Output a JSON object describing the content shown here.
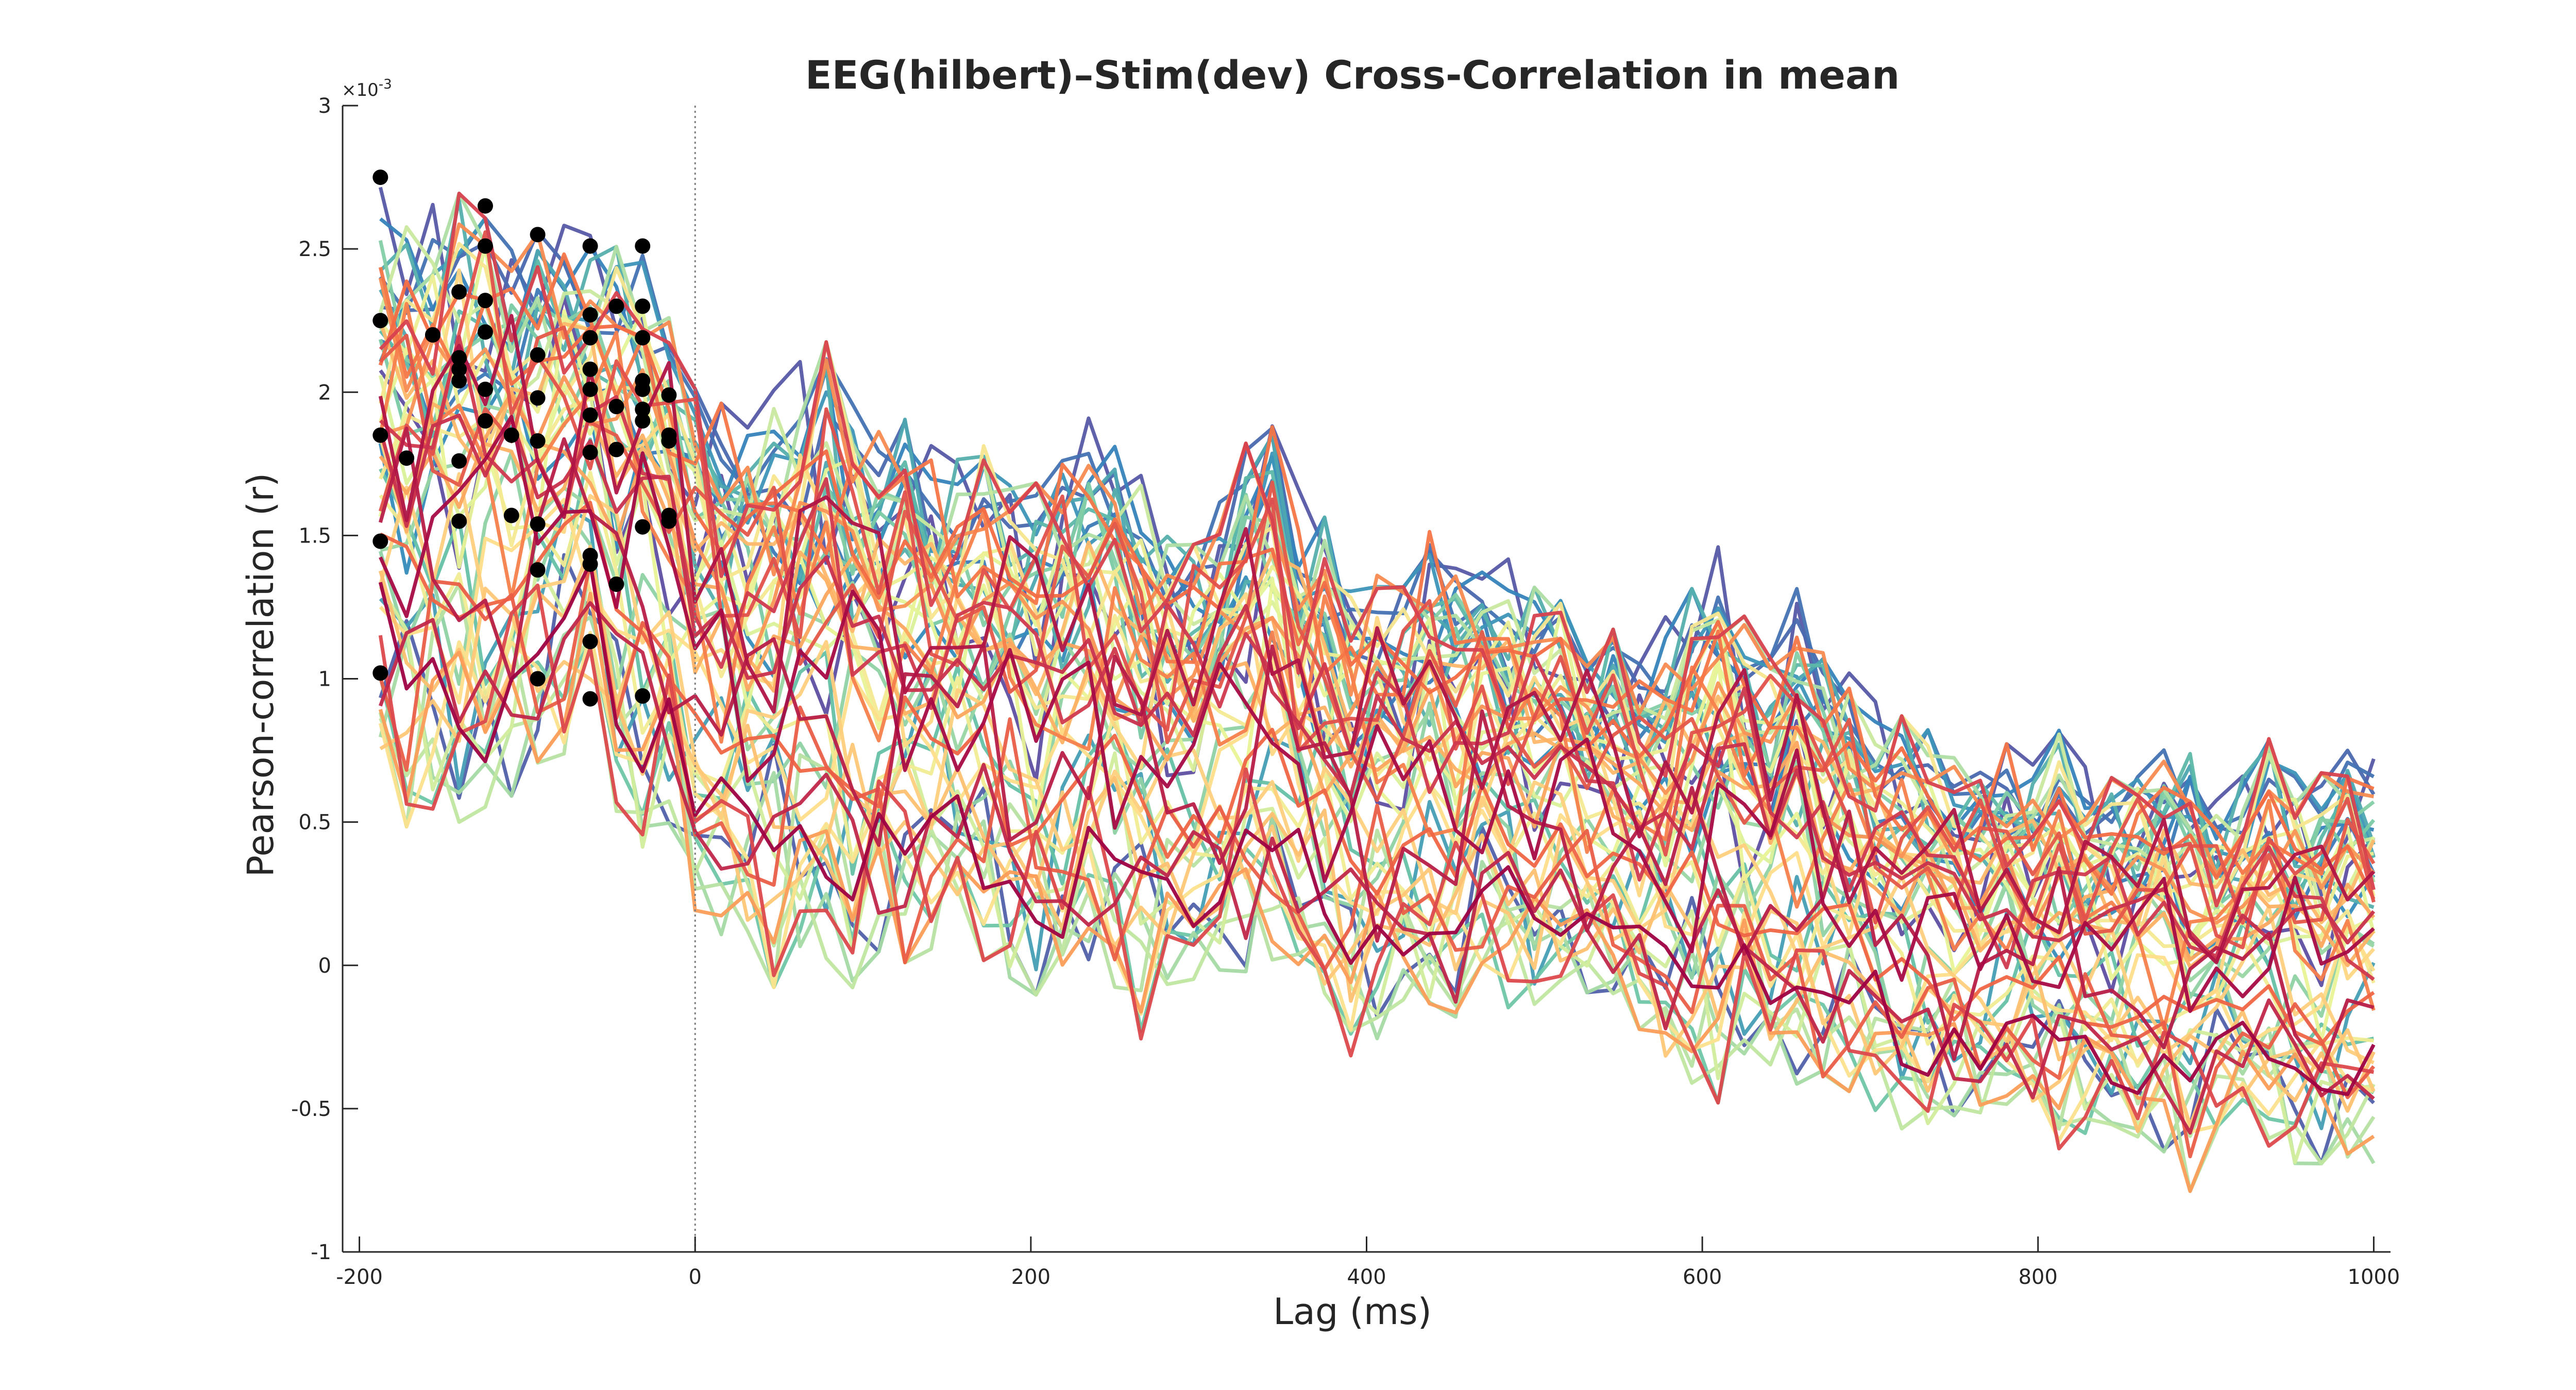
{
  "chart_data": {
    "type": "line",
    "title": "EEG(hilbert)–Stim(dev) Cross-Correlation in mean",
    "xlabel": "Lag (ms)",
    "ylabel": "Pearson-correlation (r)",
    "y_exponent_label": "×10",
    "y_exponent_power": "-3",
    "xlim": [
      -210,
      1010
    ],
    "ylim": [
      -1,
      3
    ],
    "y_scale_factor": 0.001,
    "x_ticks": [
      -200,
      0,
      200,
      400,
      600,
      800,
      1000
    ],
    "x_tick_labels": [
      "-200",
      "0",
      "200",
      "400",
      "600",
      "800",
      "1000"
    ],
    "y_ticks": [
      -1,
      -0.5,
      0,
      0.5,
      1,
      1.5,
      2,
      2.5,
      3
    ],
    "y_tick_labels": [
      "-1",
      "-0.5",
      "0",
      "0.5",
      "1",
      "1.5",
      "2",
      "2.5",
      "3"
    ],
    "reference_line_x": 0,
    "grid": false,
    "legend": "none",
    "x": [
      -187.5,
      -171.9,
      -156.3,
      -140.6,
      -125.0,
      -109.4,
      -93.8,
      -78.1,
      -62.5,
      -46.9,
      -31.3,
      -15.6,
      0.0,
      15.6,
      31.3,
      46.9,
      62.5,
      78.1,
      93.8,
      109.4,
      125.0,
      140.6,
      156.3,
      171.9,
      187.5,
      203.1,
      218.8,
      234.4,
      250.0,
      265.6,
      281.3,
      296.9,
      312.5,
      328.1,
      343.8,
      359.4,
      375.0,
      390.6,
      406.3,
      421.9,
      437.5,
      453.1,
      468.8,
      484.4,
      500.0,
      515.6,
      531.3,
      546.9,
      562.5,
      578.1,
      593.8,
      609.4,
      625.0,
      640.6,
      656.3,
      671.9,
      687.5,
      703.1,
      718.8,
      734.4,
      750.0,
      765.6,
      781.3,
      796.9,
      812.5,
      828.1,
      843.8,
      859.4,
      875.0,
      890.6,
      906.3,
      921.9,
      937.5,
      953.1,
      968.8,
      984.4,
      1000.0
    ],
    "envelope_min": [
      0.5,
      0.44,
      0.42,
      0.41,
      0.51,
      0.55,
      0.6,
      0.7,
      0.9,
      0.45,
      0.37,
      0.46,
      0.12,
      0.05,
      0.0,
      -0.12,
      -0.03,
      -0.02,
      -0.12,
      0.01,
      -0.03,
      0.0,
      0.06,
      -0.02,
      -0.08,
      -0.14,
      -0.16,
      -0.09,
      -0.14,
      -0.3,
      -0.14,
      -0.08,
      -0.05,
      -0.06,
      -0.02,
      -0.19,
      -0.23,
      -0.35,
      -0.29,
      -0.15,
      -0.3,
      -0.34,
      -0.02,
      -0.18,
      -0.22,
      -0.08,
      -0.12,
      -0.18,
      -0.25,
      -0.47,
      -0.45,
      -0.52,
      -0.34,
      -0.38,
      -0.45,
      -0.52,
      -0.47,
      -0.55,
      -0.6,
      -0.58,
      -0.55,
      -0.58,
      -0.57,
      -0.6,
      -0.67,
      -0.63,
      -0.58,
      -0.65,
      -0.68,
      -0.82,
      -0.6,
      -0.62,
      -0.66,
      -0.72,
      -0.72,
      -0.72,
      -0.72
    ],
    "envelope_max": [
      2.76,
      2.62,
      2.7,
      2.74,
      2.65,
      2.6,
      2.6,
      2.62,
      2.58,
      2.55,
      2.52,
      2.3,
      2.05,
      2.0,
      1.95,
      2.05,
      2.15,
      2.22,
      2.0,
      1.9,
      1.95,
      1.85,
      1.8,
      1.85,
      1.8,
      1.72,
      1.8,
      1.95,
      1.85,
      1.75,
      1.6,
      1.5,
      1.65,
      1.86,
      1.95,
      1.7,
      1.6,
      1.4,
      1.45,
      1.35,
      1.55,
      1.5,
      1.4,
      1.45,
      1.35,
      1.3,
      1.15,
      1.2,
      1.1,
      1.25,
      1.35,
      1.5,
      1.25,
      1.1,
      1.35,
      1.15,
      1.05,
      0.95,
      0.9,
      0.85,
      0.75,
      0.7,
      0.8,
      0.75,
      0.85,
      0.72,
      0.68,
      0.7,
      0.8,
      0.78,
      0.6,
      0.72,
      0.82,
      0.74,
      0.7,
      0.78,
      0.75
    ],
    "peak_markers": [
      {
        "x": -187.5,
        "y": 2.75
      },
      {
        "x": -187.5,
        "y": 2.25
      },
      {
        "x": -187.5,
        "y": 1.85
      },
      {
        "x": -187.5,
        "y": 1.48
      },
      {
        "x": -187.5,
        "y": 1.02
      },
      {
        "x": -171.9,
        "y": 1.77
      },
      {
        "x": -156.3,
        "y": 2.2
      },
      {
        "x": -140.6,
        "y": 2.35
      },
      {
        "x": -140.6,
        "y": 2.12
      },
      {
        "x": -140.6,
        "y": 2.08
      },
      {
        "x": -140.6,
        "y": 2.04
      },
      {
        "x": -140.6,
        "y": 1.76
      },
      {
        "x": -140.6,
        "y": 1.55
      },
      {
        "x": -125.0,
        "y": 2.65
      },
      {
        "x": -125.0,
        "y": 2.51
      },
      {
        "x": -125.0,
        "y": 2.32
      },
      {
        "x": -125.0,
        "y": 2.21
      },
      {
        "x": -125.0,
        "y": 2.01
      },
      {
        "x": -125.0,
        "y": 1.9
      },
      {
        "x": -109.4,
        "y": 1.85
      },
      {
        "x": -109.4,
        "y": 1.57
      },
      {
        "x": -93.8,
        "y": 2.55
      },
      {
        "x": -93.8,
        "y": 2.13
      },
      {
        "x": -93.8,
        "y": 1.98
      },
      {
        "x": -93.8,
        "y": 1.83
      },
      {
        "x": -93.8,
        "y": 1.54
      },
      {
        "x": -93.8,
        "y": 1.38
      },
      {
        "x": -93.8,
        "y": 1.0
      },
      {
        "x": -62.5,
        "y": 2.51
      },
      {
        "x": -62.5,
        "y": 2.27
      },
      {
        "x": -62.5,
        "y": 2.19
      },
      {
        "x": -62.5,
        "y": 2.08
      },
      {
        "x": -62.5,
        "y": 2.01
      },
      {
        "x": -62.5,
        "y": 1.92
      },
      {
        "x": -62.5,
        "y": 1.79
      },
      {
        "x": -62.5,
        "y": 1.43
      },
      {
        "x": -62.5,
        "y": 1.4
      },
      {
        "x": -62.5,
        "y": 1.13
      },
      {
        "x": -62.5,
        "y": 0.93
      },
      {
        "x": -46.9,
        "y": 2.3
      },
      {
        "x": -46.9,
        "y": 1.95
      },
      {
        "x": -46.9,
        "y": 1.8
      },
      {
        "x": -46.9,
        "y": 1.33
      },
      {
        "x": -31.3,
        "y": 2.51
      },
      {
        "x": -31.3,
        "y": 2.3
      },
      {
        "x": -31.3,
        "y": 2.19
      },
      {
        "x": -31.3,
        "y": 2.04
      },
      {
        "x": -31.3,
        "y": 2.01
      },
      {
        "x": -31.3,
        "y": 1.94
      },
      {
        "x": -31.3,
        "y": 1.9
      },
      {
        "x": -31.3,
        "y": 1.53
      },
      {
        "x": -31.3,
        "y": 0.94
      },
      {
        "x": -15.6,
        "y": 1.99
      },
      {
        "x": -15.6,
        "y": 1.85
      },
      {
        "x": -15.6,
        "y": 1.83
      },
      {
        "x": -15.6,
        "y": 1.57
      },
      {
        "x": -15.6,
        "y": 1.55
      }
    ],
    "series_count": 60,
    "colormap": [
      "#5E4FA2",
      "#3288BD",
      "#66C2A5",
      "#ABDDA4",
      "#E6F598",
      "#FEE08B",
      "#FDAE61",
      "#F46D43",
      "#D53E4F",
      "#9E0142"
    ],
    "axis_color": "#262626",
    "reference_line_color": "#808080",
    "marker_color": "#000000"
  }
}
